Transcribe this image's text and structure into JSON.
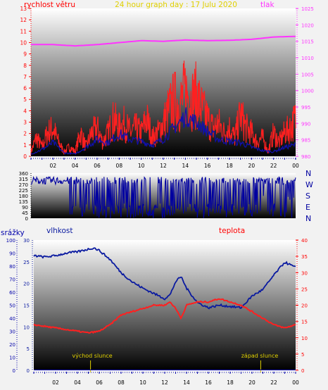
{
  "title": "24 hour graph day : 17 Julu 2020",
  "colors": {
    "title": "#e0d000",
    "wind": "#ff0000",
    "gust": "#ff2020",
    "avg_wind": "#1010b0",
    "pressure": "#ff33ff",
    "direction": "#0000a0",
    "humidity": "#0a1aa0",
    "temperature": "#ff2020",
    "rain": "#0000aa",
    "sun": "#e0d000"
  },
  "chart_data": [
    {
      "type": "line",
      "name": "wind-pressure",
      "left_label": "rychlost větru",
      "right_label": "tlak",
      "x_ticks": [
        "02",
        "04",
        "06",
        "08",
        "10",
        "12",
        "14",
        "16",
        "18",
        "20",
        "22",
        "00"
      ],
      "y_left_ticks": [
        "0",
        "1",
        "2",
        "3",
        "4",
        "5",
        "6",
        "7",
        "8",
        "9",
        "10",
        "11",
        "12",
        "13"
      ],
      "y_left_range": [
        0,
        13
      ],
      "y_right_ticks": [
        "980",
        "985",
        "990",
        "995",
        "1000",
        "1005",
        "1010",
        "1015",
        "1020",
        "1025"
      ],
      "y_right_range": [
        980,
        1025
      ],
      "x_range": [
        0,
        24
      ],
      "series": [
        {
          "key": "gust",
          "x": [
            0,
            0.5,
            1,
            1.5,
            2,
            2.5,
            3,
            3.5,
            4,
            4.5,
            5,
            5.5,
            6,
            6.5,
            7,
            7.5,
            8,
            8.5,
            9,
            9.5,
            10,
            10.5,
            11,
            11.5,
            12,
            12.5,
            13,
            13.5,
            14,
            14.5,
            15,
            15.5,
            16,
            16.5,
            17,
            17.5,
            18,
            18.5,
            19,
            19.5,
            20,
            20.5,
            21,
            21.5,
            22,
            22.5,
            23,
            23.5,
            24
          ],
          "y": [
            0.5,
            2,
            1,
            2.5,
            3,
            1.5,
            0.5,
            1,
            0.5,
            2.5,
            1,
            2.5,
            3,
            1.5,
            2.5,
            4,
            3,
            3.5,
            2.5,
            3,
            2.5,
            4,
            2,
            2.5,
            3.5,
            5,
            6,
            5.5,
            7,
            6,
            6.5,
            5,
            4,
            3,
            3.5,
            2.5,
            3,
            2,
            4.5,
            3,
            2.5,
            1.5,
            2,
            0.5,
            2.5,
            1.5,
            2.5,
            3,
            4
          ]
        },
        {
          "key": "avg",
          "x": [
            0,
            1,
            2,
            3,
            4,
            5,
            6,
            7,
            8,
            9,
            10,
            11,
            12,
            13,
            14,
            15,
            16,
            17,
            18,
            19,
            20,
            21,
            22,
            23,
            24
          ],
          "y": [
            0.2,
            0.6,
            1.2,
            0.3,
            0.2,
            0.8,
            1.5,
            1.2,
            2,
            1.5,
            1.3,
            1,
            1.5,
            2.5,
            3.5,
            3,
            2.2,
            1.5,
            1.3,
            1.2,
            0.8,
            0.5,
            0.4,
            0.8,
            1
          ]
        },
        {
          "key": "pressure",
          "x": [
            0,
            2,
            4,
            6,
            8,
            10,
            12,
            14,
            16,
            18,
            20,
            22,
            24
          ],
          "y": [
            1014,
            1014,
            1013.6,
            1014,
            1014.6,
            1015.2,
            1015,
            1015.4,
            1015.2,
            1015.3,
            1015.6,
            1016.3,
            1016.5
          ]
        }
      ]
    },
    {
      "type": "scatter",
      "name": "wind-direction",
      "y_ticks": [
        "360",
        "315",
        "270",
        "225",
        "180",
        "135",
        "90",
        "45",
        "0"
      ],
      "y_range": [
        0,
        360
      ],
      "x_range": [
        0,
        24
      ],
      "compass": [
        "N",
        "W",
        "S",
        "E",
        "N"
      ],
      "base": 300
    },
    {
      "type": "line",
      "name": "rain-humidity-temperature",
      "left_label": "srážky",
      "mid_label": "vlhkost",
      "right_label": "teplota",
      "x_ticks": [
        "02",
        "04",
        "06",
        "08",
        "10",
        "12",
        "14",
        "16",
        "18",
        "20",
        "22",
        "00"
      ],
      "y_rain_ticks": [
        "0",
        "10",
        "20",
        "30",
        "40",
        "50",
        "60",
        "70",
        "80",
        "90",
        "100"
      ],
      "y_rain_range": [
        0,
        100
      ],
      "y_humidity_ticks": [
        "0",
        "5",
        "10",
        "15",
        "20",
        "25",
        "30"
      ],
      "y_humidity_range": [
        0,
        30
      ],
      "y_temp_ticks": [
        "0",
        "5",
        "10",
        "15",
        "20",
        "25",
        "30",
        "35",
        "40"
      ],
      "y_temp_range": [
        0,
        40
      ],
      "x_range": [
        0,
        24
      ],
      "sunrise_label": "východ slunce",
      "sunset_label": "západ slunce",
      "sunrise_x": 5.2,
      "sunset_x": 20.8,
      "series": [
        {
          "key": "humidity",
          "x": [
            0,
            1,
            2,
            3,
            4,
            5,
            5.5,
            6,
            7,
            8,
            9,
            10,
            11,
            12,
            12.5,
            13,
            13.5,
            14,
            15,
            16,
            17,
            18,
            19,
            20,
            21,
            22,
            23,
            24
          ],
          "y": [
            88,
            87,
            88,
            90,
            91,
            93,
            94,
            92,
            85,
            75,
            68,
            63,
            59,
            55,
            58,
            68,
            72,
            63,
            52,
            48,
            50,
            49,
            48,
            57,
            62,
            73,
            83,
            79
          ]
        },
        {
          "key": "temperature",
          "x": [
            0,
            1,
            2,
            3,
            4,
            5,
            6,
            7,
            8,
            9,
            10,
            11,
            12,
            12.5,
            13,
            13.5,
            14,
            15,
            16,
            17,
            18,
            19,
            20,
            21,
            22,
            23,
            24
          ],
          "y": [
            14,
            13.5,
            13,
            12.5,
            12,
            11.5,
            12,
            14,
            17,
            18,
            19,
            20,
            20,
            21,
            19,
            16,
            20,
            21,
            21,
            22,
            21,
            20,
            18,
            16,
            14,
            13,
            14
          ]
        }
      ]
    }
  ]
}
